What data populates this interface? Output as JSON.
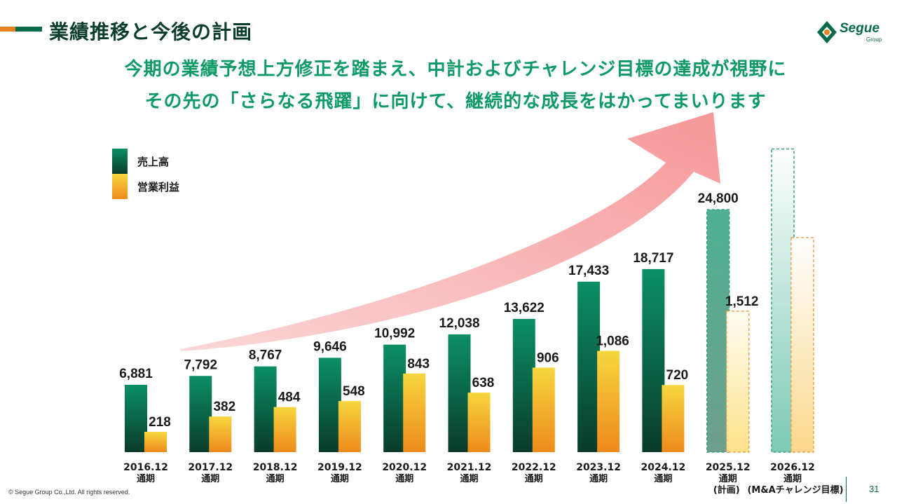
{
  "header": {
    "title": "業績推移と今後の計画",
    "headline_line1": "今期の業績予想上方修正を踏まえ、中計およびチャレンジ目標の達成が視野に",
    "headline_line2": "その先の「さらなる飛躍」に向けて、継続的な成長をはかってまいります"
  },
  "logo": {
    "name": "Segue",
    "sub": "Group"
  },
  "legend": {
    "sales": "売上高",
    "op_profit": "営業利益"
  },
  "colors": {
    "sales_top": "#0b8f66",
    "sales_bottom": "#0a3b2a",
    "profit_top": "#f7d63f",
    "profit_bottom": "#ee8a1c",
    "arrow": "#f4898a",
    "headline": "#0e9a66",
    "title": "#0b3d2c"
  },
  "chart_data": {
    "type": "bar",
    "categories": [
      "2016.12 通期",
      "2017.12 通期",
      "2018.12 通期",
      "2019.12 通期",
      "2020.12 通期",
      "2021.12 通期",
      "2022.12 通期",
      "2023.12 通期",
      "2024.12 通期",
      "2025.12 通期 (計画)",
      "2026.12 通期 (M&Aチャレンジ目標)"
    ],
    "category_lines": [
      [
        "2016.12",
        "通期"
      ],
      [
        "2017.12",
        "通期"
      ],
      [
        "2018.12",
        "通期"
      ],
      [
        "2019.12",
        "通期"
      ],
      [
        "2020.12",
        "通期"
      ],
      [
        "2021.12",
        "通期"
      ],
      [
        "2022.12",
        "通期"
      ],
      [
        "2023.12",
        "通期"
      ],
      [
        "2024.12",
        "通期"
      ],
      [
        "2025.12",
        "通期",
        "(計画)"
      ],
      [
        "2026.12",
        "通期",
        "(M&Aチャレンジ目標)"
      ]
    ],
    "series": [
      {
        "name": "売上高",
        "values": [
          6881,
          7792,
          8767,
          9646,
          10992,
          12038,
          13622,
          17433,
          18717,
          24800,
          31000
        ],
        "labels": [
          "6,881",
          "7,792",
          "8,767",
          "9,646",
          "10,992",
          "12,038",
          "13,622",
          "17,433",
          "18,717",
          "24,800",
          ""
        ]
      },
      {
        "name": "営業利益",
        "values": [
          218,
          382,
          484,
          548,
          843,
          638,
          906,
          1086,
          720,
          1512,
          2300
        ],
        "labels": [
          "218",
          "382",
          "484",
          "548",
          "843",
          "638",
          "906",
          "1,086",
          "720",
          "1,512",
          ""
        ]
      }
    ],
    "forecast": [
      false,
      false,
      false,
      false,
      false,
      false,
      false,
      false,
      false,
      true,
      true
    ],
    "annotation": "growth-arrow"
  },
  "footer": {
    "copyright": "© Segue Group Co.,Ltd. All rights reserved.",
    "page": "31"
  }
}
